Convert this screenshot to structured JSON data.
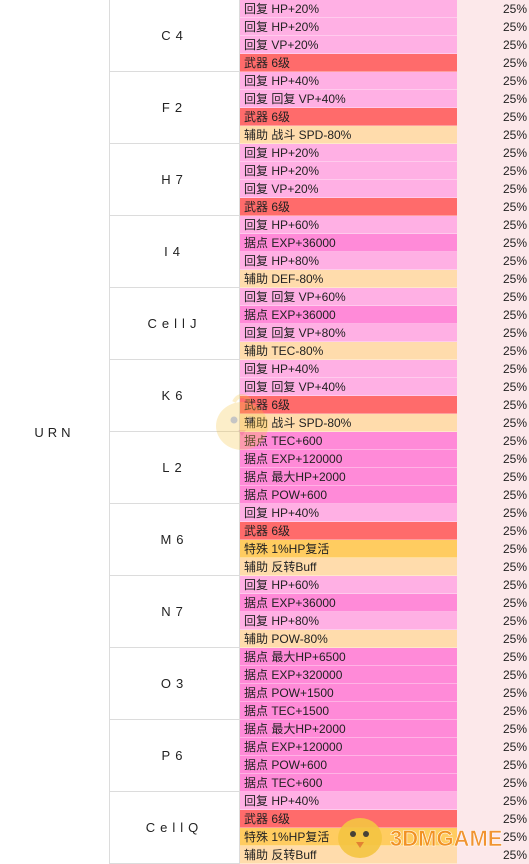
{
  "table": {
    "group": "URN",
    "slots": [
      {
        "name": "C4",
        "effects": [
          {
            "text": "回复 HP+20%",
            "kind": "heal",
            "rate": "25%"
          },
          {
            "text": "回复 HP+20%",
            "kind": "heal",
            "rate": "25%"
          },
          {
            "text": "回复 VP+20%",
            "kind": "heal",
            "rate": "25%"
          },
          {
            "text": "武器 6级",
            "kind": "weapon",
            "rate": "25%"
          }
        ]
      },
      {
        "name": "F2",
        "effects": [
          {
            "text": "回复 HP+40%",
            "kind": "heal",
            "rate": "25%"
          },
          {
            "text": "回复 回复 VP+40%",
            "kind": "heal",
            "rate": "25%"
          },
          {
            "text": "武器 6级",
            "kind": "weapon",
            "rate": "25%"
          },
          {
            "text": "辅助 战斗 SPD-80%",
            "kind": "assist",
            "rate": "25%"
          }
        ]
      },
      {
        "name": "H7",
        "effects": [
          {
            "text": "回复 HP+20%",
            "kind": "heal",
            "rate": "25%"
          },
          {
            "text": "回复 HP+20%",
            "kind": "heal",
            "rate": "25%"
          },
          {
            "text": "回复 VP+20%",
            "kind": "heal",
            "rate": "25%"
          },
          {
            "text": "武器 6级",
            "kind": "weapon",
            "rate": "25%"
          }
        ]
      },
      {
        "name": "I4",
        "effects": [
          {
            "text": "回复 HP+60%",
            "kind": "heal",
            "rate": "25%"
          },
          {
            "text": "据点 EXP+36000",
            "kind": "base",
            "rate": "25%"
          },
          {
            "text": "回复 HP+80%",
            "kind": "heal",
            "rate": "25%"
          },
          {
            "text": "辅助 DEF-80%",
            "kind": "assist",
            "rate": "25%"
          }
        ]
      },
      {
        "name": "CellJ",
        "effects": [
          {
            "text": "回复 回复 VP+60%",
            "kind": "heal",
            "rate": "25%"
          },
          {
            "text": "据点 EXP+36000",
            "kind": "base",
            "rate": "25%"
          },
          {
            "text": "回复 回复 VP+80%",
            "kind": "heal",
            "rate": "25%"
          },
          {
            "text": "辅助 TEC-80%",
            "kind": "assist",
            "rate": "25%"
          }
        ]
      },
      {
        "name": "K6",
        "effects": [
          {
            "text": "回复 HP+40%",
            "kind": "heal",
            "rate": "25%"
          },
          {
            "text": "回复 回复 VP+40%",
            "kind": "heal",
            "rate": "25%"
          },
          {
            "text": "武器 6级",
            "kind": "weapon",
            "rate": "25%"
          },
          {
            "text": "辅助 战斗 SPD-80%",
            "kind": "assist",
            "rate": "25%"
          }
        ]
      },
      {
        "name": "L2",
        "effects": [
          {
            "text": "据点 TEC+600",
            "kind": "base",
            "rate": "25%"
          },
          {
            "text": "据点 EXP+120000",
            "kind": "base",
            "rate": "25%"
          },
          {
            "text": "据点 最大HP+2000",
            "kind": "base",
            "rate": "25%"
          },
          {
            "text": "据点 POW+600",
            "kind": "base",
            "rate": "25%"
          }
        ]
      },
      {
        "name": "M6",
        "effects": [
          {
            "text": "回复 HP+40%",
            "kind": "heal",
            "rate": "25%"
          },
          {
            "text": "武器 6级",
            "kind": "weapon",
            "rate": "25%"
          },
          {
            "text": "特殊 1%HP复活",
            "kind": "special",
            "rate": "25%"
          },
          {
            "text": "辅助 反转Buff",
            "kind": "assist",
            "rate": "25%"
          }
        ]
      },
      {
        "name": "N7",
        "effects": [
          {
            "text": "回复 HP+60%",
            "kind": "heal",
            "rate": "25%"
          },
          {
            "text": "据点 EXP+36000",
            "kind": "base",
            "rate": "25%"
          },
          {
            "text": "回复 HP+80%",
            "kind": "heal",
            "rate": "25%"
          },
          {
            "text": "辅助 POW-80%",
            "kind": "assist",
            "rate": "25%"
          }
        ]
      },
      {
        "name": "O3",
        "effects": [
          {
            "text": "据点 最大HP+6500",
            "kind": "base",
            "rate": "25%"
          },
          {
            "text": "据点 EXP+320000",
            "kind": "base",
            "rate": "25%"
          },
          {
            "text": "据点 POW+1500",
            "kind": "base",
            "rate": "25%"
          },
          {
            "text": "据点 TEC+1500",
            "kind": "base",
            "rate": "25%"
          }
        ]
      },
      {
        "name": "P6",
        "effects": [
          {
            "text": "据点 最大HP+2000",
            "kind": "base",
            "rate": "25%"
          },
          {
            "text": "据点 EXP+120000",
            "kind": "base",
            "rate": "25%"
          },
          {
            "text": "据点 POW+600",
            "kind": "base",
            "rate": "25%"
          },
          {
            "text": "据点 TEC+600",
            "kind": "base",
            "rate": "25%"
          }
        ]
      },
      {
        "name": "CellQ",
        "effects": [
          {
            "text": "回复 HP+40%",
            "kind": "heal",
            "rate": "25%"
          },
          {
            "text": "武器 6级",
            "kind": "weapon",
            "rate": "25%"
          },
          {
            "text": "特殊 1%HP复活",
            "kind": "special",
            "rate": "25%"
          },
          {
            "text": "辅助 反转Buff",
            "kind": "assist",
            "rate": "25%"
          }
        ]
      }
    ]
  },
  "watermark": {
    "corner_text": "3DMGAME",
    "icon": "chick-mascot-icon"
  },
  "colors": {
    "heal": "#ffb0e4",
    "weapon": "#ff6b6b",
    "assist": "#ffdcac",
    "base": "#ff8ad8",
    "special": "#ffcc60",
    "rate_bg": "#fce8ea"
  }
}
